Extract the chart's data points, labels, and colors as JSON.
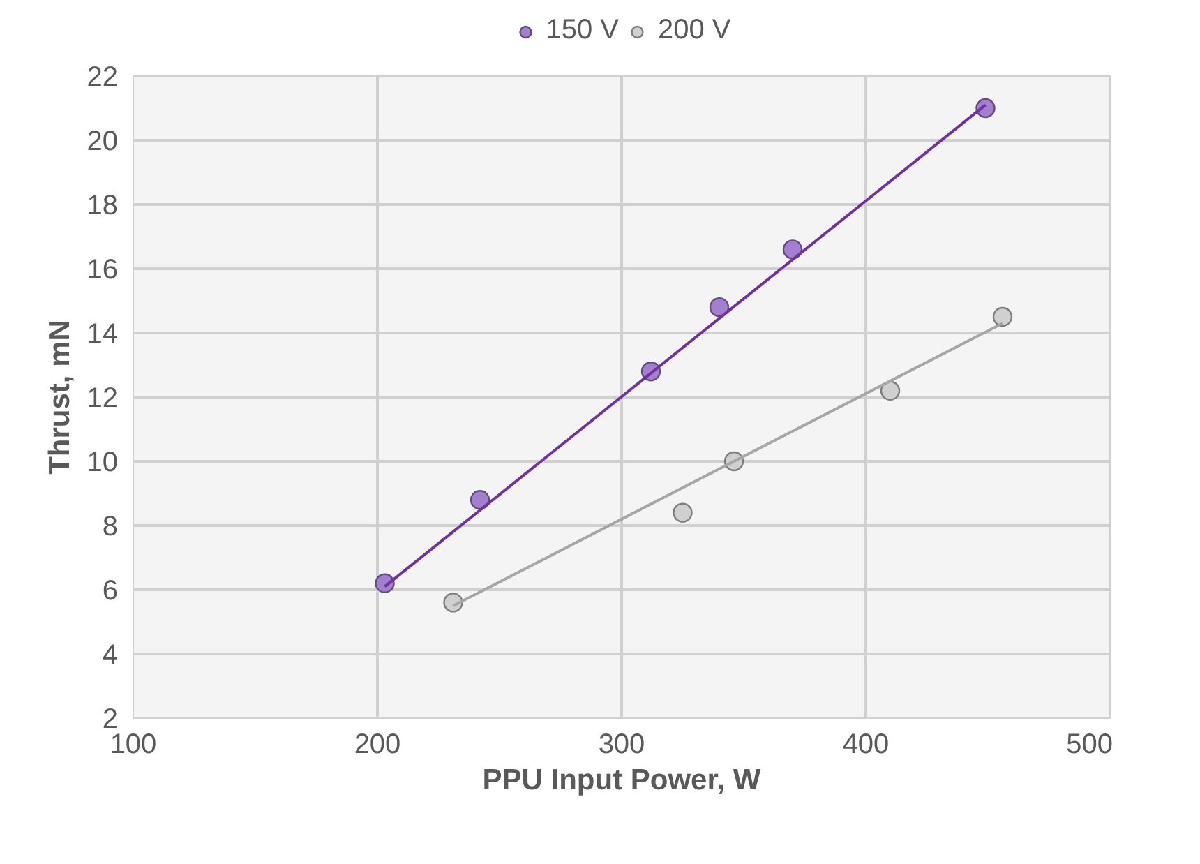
{
  "chart_data": {
    "type": "scatter",
    "xlabel": "PPU Input Power, W",
    "ylabel": "Thrust, mN",
    "xlim": [
      100,
      500
    ],
    "ylim": [
      2,
      22
    ],
    "xticks": [
      100,
      200,
      300,
      400,
      500
    ],
    "yticks": [
      2,
      4,
      6,
      8,
      10,
      12,
      14,
      16,
      18,
      20,
      22
    ],
    "grid": true,
    "legend": "top",
    "marker": "circle",
    "series": [
      {
        "name": "150 V",
        "color": "#a47fd0",
        "x": [
          203,
          242,
          312,
          340,
          370,
          449
        ],
        "values": [
          6.2,
          8.8,
          12.8,
          14.8,
          16.6,
          21.0
        ]
      },
      {
        "name": "200 V",
        "color": "#d0d0d0",
        "x": [
          231,
          325,
          346,
          410,
          456
        ],
        "values": [
          5.6,
          8.4,
          10.0,
          12.2,
          14.5
        ]
      },
      {
        "type": "line",
        "marker": "none",
        "color": "#7030a0",
        "x": [
          203,
          449
        ],
        "values": [
          6.1,
          21.1
        ]
      },
      {
        "type": "line",
        "marker": "none",
        "color": "#a6a6a6",
        "x": [
          231,
          456
        ],
        "values": [
          5.5,
          14.3
        ]
      }
    ]
  }
}
